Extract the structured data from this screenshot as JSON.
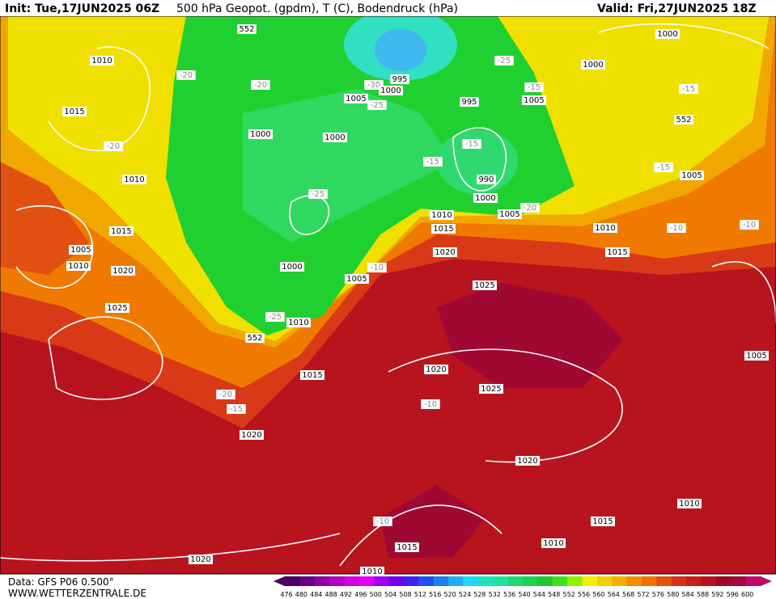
{
  "header": {
    "init": "Init: Tue,17JUN2025 06Z",
    "title": "500 hPa Geopot. (gpdm), T (C), Bodendruck (hPa)",
    "valid": "Valid: Fri,27JUN2025 18Z"
  },
  "footer": {
    "data": "Data: GFS P06 0.500°",
    "site": "WWW.WETTERZENTRALE.DE"
  },
  "map_labels": [
    "552",
    "1010",
    "-20",
    "1015",
    "-20",
    "1010",
    "1005",
    "1010",
    "1015",
    "1020",
    "1025",
    "-20",
    "1000",
    "1000",
    "1005",
    "-30",
    "-25",
    "995",
    "1000",
    "995",
    "-25",
    "-15",
    "1005",
    "1000",
    "1000",
    "-15",
    "552",
    "-15",
    "1005",
    "-15",
    "-15",
    "990",
    "1000",
    "-25",
    "1010",
    "1005",
    "-20",
    "1015",
    "1010",
    "-10",
    "-10",
    "1020",
    "1015",
    "1000",
    "1005",
    "-10",
    "1025",
    "-25",
    "1010",
    "552",
    "1015",
    "1020",
    "1025",
    "-10",
    "-20",
    "-15",
    "1020",
    "1005",
    "1020",
    "1015",
    "1010",
    "1010",
    "-10",
    "1015",
    "1020",
    "1010"
  ],
  "colorbar": {
    "labels": [
      476,
      480,
      484,
      488,
      492,
      496,
      500,
      504,
      508,
      512,
      516,
      520,
      524,
      528,
      532,
      536,
      540,
      544,
      548,
      552,
      556,
      560,
      564,
      568,
      572,
      576,
      580,
      584,
      588,
      592,
      596,
      600
    ],
    "colors": [
      "#4a0060",
      "#6a0080",
      "#9000a0",
      "#b000c0",
      "#d000e0",
      "#e000f0",
      "#a000f0",
      "#7000f0",
      "#4020f0",
      "#2050f0",
      "#2080f0",
      "#20b0f0",
      "#20d8f0",
      "#20e0c0",
      "#20e0a0",
      "#20d870",
      "#20d050",
      "#20c830",
      "#40e020",
      "#90f000",
      "#f0f000",
      "#f0d000",
      "#f0b000",
      "#f09000",
      "#f07000",
      "#e05010",
      "#d83018",
      "#c82018",
      "#b81020",
      "#a00828",
      "#a00840",
      "#c00870"
    ]
  }
}
